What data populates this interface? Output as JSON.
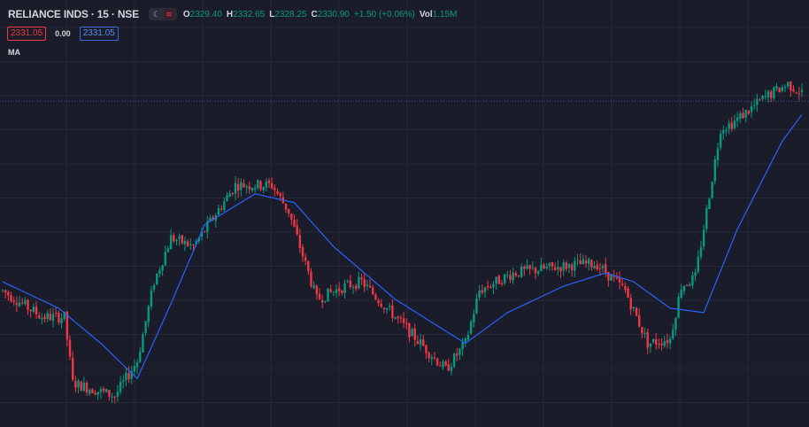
{
  "header": {
    "symbol": "RELIANCE INDS · 15 · NSE",
    "moon_icon": "☾",
    "wave_icon": "≋",
    "open_key": "O",
    "open_val": "2329.40",
    "high_key": "H",
    "high_val": "2332.65",
    "low_key": "L",
    "low_val": "2328.25",
    "close_key": "C",
    "close_val": "2330.90",
    "change": "+1.50 (+0.06%)",
    "vol_key": "Vol",
    "vol_val": "1.15M"
  },
  "row2": {
    "sell_price": "2331.05",
    "spread": "0.00",
    "buy_price": "2331.05"
  },
  "indicator_label": "MA",
  "colors": {
    "up": "#089981",
    "down": "#f23645",
    "ma": "#2962ff",
    "price_line": "#3d5ab8",
    "grid": "#242838",
    "background": "#1a1d29"
  },
  "chart_data": {
    "type": "candlestick",
    "interval": "15",
    "last_price": 2331.05,
    "anchors": [
      [
        0,
        2288
      ],
      [
        14,
        2282
      ],
      [
        22,
        2282
      ],
      [
        25,
        2267
      ],
      [
        40,
        2264
      ],
      [
        48,
        2272
      ],
      [
        54,
        2290
      ],
      [
        60,
        2300
      ],
      [
        68,
        2298
      ],
      [
        83,
        2312
      ],
      [
        96,
        2312
      ],
      [
        102,
        2306
      ],
      [
        112,
        2286
      ],
      [
        122,
        2289
      ],
      [
        128,
        2290
      ],
      [
        140,
        2282
      ],
      [
        158,
        2270
      ],
      [
        165,
        2276
      ],
      [
        170,
        2288
      ],
      [
        182,
        2292
      ],
      [
        205,
        2294
      ],
      [
        212,
        2294
      ],
      [
        222,
        2288
      ],
      [
        230,
        2276
      ],
      [
        238,
        2277
      ],
      [
        242,
        2289
      ],
      [
        247,
        2291
      ],
      [
        256,
        2325
      ],
      [
        260,
        2326
      ],
      [
        272,
        2332
      ],
      [
        280,
        2335
      ],
      [
        285,
        2333
      ]
    ],
    "ma_anchors": [
      [
        0,
        2290
      ],
      [
        20,
        2284
      ],
      [
        35,
        2276
      ],
      [
        48,
        2268
      ],
      [
        60,
        2285
      ],
      [
        72,
        2303
      ],
      [
        90,
        2310
      ],
      [
        104,
        2308
      ],
      [
        118,
        2298
      ],
      [
        140,
        2286
      ],
      [
        165,
        2276
      ],
      [
        180,
        2283
      ],
      [
        200,
        2289
      ],
      [
        215,
        2292
      ],
      [
        225,
        2290
      ],
      [
        238,
        2284
      ],
      [
        250,
        2283
      ],
      [
        262,
        2302
      ],
      [
        278,
        2322
      ],
      [
        285,
        2328
      ]
    ],
    "ylim": [
      2260,
      2342
    ]
  }
}
